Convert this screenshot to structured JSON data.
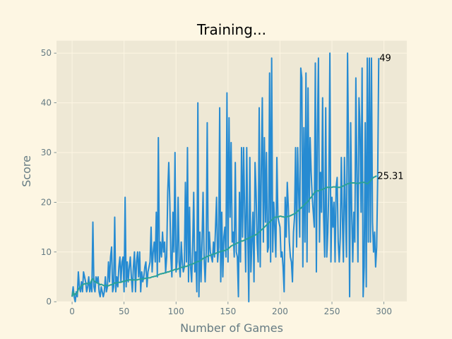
{
  "chart_data": {
    "type": "line",
    "title": "Training...",
    "xlabel": "Number of Games",
    "ylabel": "Score",
    "xlim": [
      -15,
      322
    ],
    "ylim": [
      0,
      52.5
    ],
    "xticks": [
      0,
      50,
      100,
      150,
      200,
      250,
      300
    ],
    "yticks": [
      0,
      10,
      20,
      30,
      40,
      50
    ],
    "grid": true,
    "legend": "none",
    "colors": {
      "figure_bg": "#fdf6e3",
      "axes_bg": "#eee8d5",
      "grid": "#fdf6e3",
      "score": "#268bd2",
      "mean": "#2aa198"
    },
    "series": [
      {
        "key": "score",
        "values": [
          1,
          3,
          1,
          0,
          2,
          1,
          6,
          3,
          2,
          4,
          2,
          6,
          5,
          4,
          2,
          3,
          5,
          2,
          4,
          2,
          16,
          3,
          2,
          5,
          4,
          5,
          2,
          1,
          3,
          2,
          1,
          2,
          5,
          2,
          3,
          8,
          4,
          9,
          11,
          2,
          3,
          17,
          2,
          5,
          3,
          7,
          9,
          4,
          8,
          9,
          2,
          21,
          3,
          8,
          4,
          7,
          9,
          5,
          2,
          7,
          10,
          2,
          8,
          10,
          5,
          10,
          2,
          6,
          4,
          5,
          7,
          8,
          3,
          6,
          7,
          8,
          15,
          6,
          10,
          12,
          8,
          18,
          5,
          33,
          8,
          12,
          9,
          14,
          10,
          12,
          6,
          9,
          22,
          28,
          20,
          9,
          5,
          18,
          10,
          30,
          6,
          8,
          21,
          8,
          5,
          12,
          8,
          6,
          7,
          24,
          8,
          31,
          4,
          19,
          7,
          4,
          11,
          22,
          6,
          10,
          2,
          40,
          1,
          14,
          4,
          12,
          22,
          9,
          4,
          10,
          36,
          8,
          14,
          10,
          9,
          8,
          12,
          9,
          15,
          21,
          8,
          11,
          39,
          4,
          18,
          5,
          13,
          15,
          9,
          42,
          8,
          37,
          17,
          32,
          12,
          14,
          9,
          28,
          10,
          9,
          1,
          22,
          8,
          31,
          13,
          31,
          18,
          6,
          31,
          14,
          0,
          29,
          6,
          12,
          18,
          4,
          28,
          22,
          12,
          8,
          39,
          7,
          26,
          41,
          12,
          33,
          16,
          30,
          10,
          11,
          46,
          8,
          49,
          10,
          20,
          15,
          9,
          29,
          17,
          16,
          15,
          9,
          10,
          7,
          2,
          21,
          13,
          24,
          19,
          12,
          9,
          8,
          4,
          14,
          17,
          31,
          11,
          31,
          22,
          13,
          47,
          45,
          7,
          35,
          12,
          46,
          8,
          43,
          18,
          33,
          26,
          21,
          18,
          15,
          48,
          6,
          34,
          49,
          12,
          26,
          18,
          41,
          17,
          9,
          39,
          9,
          14,
          23,
          50,
          8,
          21,
          15,
          20,
          8,
          23,
          25,
          12,
          8,
          13,
          29,
          17,
          8,
          29,
          18,
          9,
          50,
          29,
          1,
          36,
          18,
          8,
          18,
          12,
          45,
          25,
          8,
          41,
          35,
          18,
          47,
          1,
          7,
          36,
          3,
          49,
          12,
          49,
          12,
          49,
          16,
          10,
          14,
          7,
          11,
          25,
          49
        ],
        "marks": "line"
      },
      {
        "key": "mean",
        "values": [
          1,
          2,
          1.3,
          1.6,
          1.5,
          1.8,
          2.5,
          2.8,
          2.9,
          3.2,
          3.4,
          3.5,
          3.6,
          3.6,
          3.7,
          3.6,
          3.8,
          3.7,
          3.8,
          4.5,
          4.6,
          4.2,
          4,
          3.9,
          3.8,
          3.7,
          3.6,
          3.4,
          3.5,
          3.4,
          3.3,
          3.2,
          3.3,
          3.3,
          3.2,
          3.2,
          3.3,
          3.4,
          3.4,
          3.5,
          3.6,
          3.8,
          3.7,
          3.8,
          3.9,
          3.9,
          3.9,
          3.9,
          4,
          4.1,
          4,
          4.2,
          4.2,
          4.3,
          4.3,
          4.4,
          4.4,
          4.4,
          4.3,
          4.4,
          4.4,
          4.3,
          4.4,
          4.4,
          4.5,
          4.5,
          4.5,
          4.6,
          4.6,
          4.6,
          4.7,
          4.7,
          4.7,
          4.8,
          4.8,
          4.8,
          4.9,
          5,
          5,
          5.1,
          5.1,
          5.2,
          5.3,
          5.4,
          5.5,
          5.6,
          5.6,
          5.7,
          5.7,
          5.8,
          5.8,
          5.9,
          6,
          6,
          6.1,
          6.2,
          6.3,
          6.3,
          6.4,
          6.5,
          6.5,
          6.5,
          6.6,
          6.7,
          6.8,
          6.9,
          6.9,
          7,
          7,
          7.1,
          7.1,
          7.2,
          7.3,
          7.4,
          7.5,
          7.5,
          7.6,
          7.7,
          7.8,
          7.9,
          8,
          8.1,
          8.1,
          8.2,
          8.3,
          8.5,
          8.7,
          8.8,
          8.9,
          9,
          9.1,
          9.2,
          9.3,
          9.3,
          9.4,
          9.5,
          9.6,
          9.6,
          9.7,
          9.8,
          9.9,
          10,
          10,
          10.1,
          10.2,
          10.2,
          10.3,
          10.3,
          10.4,
          10.5,
          10.6,
          10.8,
          11,
          11.2,
          11.3,
          11.4,
          11.5,
          11.6,
          11.7,
          11.8,
          11.9,
          12,
          12.1,
          12.2,
          12.2,
          12.3,
          12.4,
          12.5,
          12.6,
          12.7,
          12.8,
          12.9,
          13,
          13.1,
          13.2,
          13.3,
          13.4,
          13.5,
          13.6,
          13.8,
          14,
          14.2,
          14.4,
          14.6,
          14.8,
          15,
          15.2,
          15.4,
          15.6,
          15.8,
          16,
          16.2,
          16.4,
          16.6,
          16.8,
          17,
          17,
          17,
          17.1,
          17.1,
          17.2,
          17.2,
          17.1,
          17.1,
          17,
          17,
          17.1,
          17.1,
          17.2,
          17.2,
          17.3,
          17.4,
          17.5,
          17.6,
          17.7,
          17.8,
          18,
          18.2,
          18.4,
          18.6,
          18.8,
          19,
          19.2,
          19.4,
          19.6,
          19.8,
          20,
          20.2,
          20.5,
          20.8,
          21,
          21.3,
          21.6,
          21.9,
          22.1,
          22.3,
          22.3,
          22.3,
          22.4,
          22.5,
          22.5,
          22.6,
          22.7,
          22.8,
          22.9,
          23,
          23,
          23,
          23,
          23,
          23,
          23.1,
          23.1,
          23.1,
          23,
          23,
          23,
          23,
          23,
          23.1,
          23.2,
          23.3,
          23.4,
          23.5,
          23.6,
          23.7,
          23.8,
          23.8,
          23.9,
          23.9,
          23.9,
          23.9,
          23.9,
          23.8,
          23.8,
          23.8,
          23.8,
          23.9,
          24,
          24,
          24,
          24,
          23.9,
          23.8,
          23.7,
          23.9,
          24.1,
          24.3,
          24.6,
          24.8,
          25,
          25.1,
          25.2,
          25.31
        ],
        "marks": "line"
      }
    ],
    "end_labels": {
      "score": "49",
      "mean": "25.31"
    }
  }
}
